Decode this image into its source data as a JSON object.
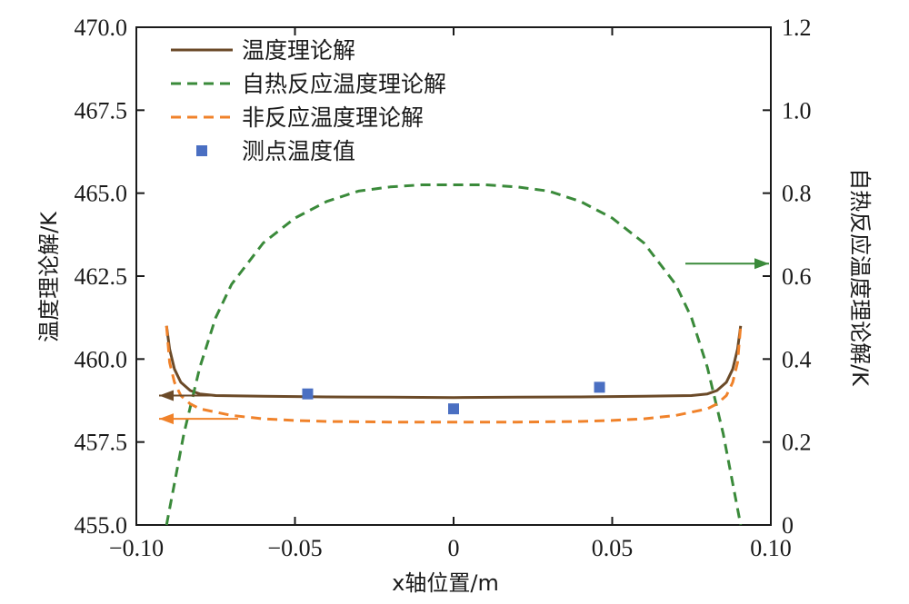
{
  "chart_data": {
    "type": "line",
    "xlabel": "x轴位置/m",
    "ylabel_left": "温度理论解/K",
    "ylabel_right": "自热反应温度理论解/K",
    "xlim": [
      -0.1,
      0.1
    ],
    "ylim_left": [
      455.0,
      470.0
    ],
    "ylim_right": [
      0,
      1.2
    ],
    "x_ticks": [
      -0.1,
      -0.05,
      0,
      0.05,
      0.1
    ],
    "x_tick_labels": [
      "−0.10",
      "−0.05",
      "0",
      "0.05",
      "0.10"
    ],
    "y_left_ticks": [
      455.0,
      457.5,
      460.0,
      462.5,
      465.0,
      467.5,
      470.0
    ],
    "y_left_tick_labels": [
      "455.0",
      "457.5",
      "460.0",
      "462.5",
      "465.0",
      "467.5",
      "470.0"
    ],
    "y_right_ticks": [
      0,
      0.2,
      0.4,
      0.6,
      0.8,
      1.0,
      1.2
    ],
    "y_right_tick_labels": [
      "0",
      "0.2",
      "0.4",
      "0.6",
      "0.8",
      "1.0",
      "1.2"
    ],
    "grid": false,
    "legend_position": "top-left",
    "series": [
      {
        "name": "温度理论解",
        "axis": "left",
        "style": "solid",
        "color": "#6b4a28",
        "x": [
          -0.0905,
          -0.0895,
          -0.088,
          -0.086,
          -0.083,
          -0.08,
          -0.075,
          -0.06,
          -0.04,
          -0.02,
          0,
          0.02,
          0.04,
          0.06,
          0.075,
          0.08,
          0.083,
          0.086,
          0.088,
          0.0895,
          0.0905
        ],
        "y": [
          461.0,
          460.3,
          459.7,
          459.3,
          459.05,
          458.95,
          458.9,
          458.88,
          458.86,
          458.85,
          458.84,
          458.85,
          458.86,
          458.88,
          458.9,
          458.95,
          459.05,
          459.3,
          459.7,
          460.3,
          461.0
        ]
      },
      {
        "name": "自热反应温度理论解",
        "axis": "right",
        "style": "dashed",
        "color": "#3a8a3a",
        "x": [
          -0.0905,
          -0.088,
          -0.085,
          -0.08,
          -0.075,
          -0.07,
          -0.06,
          -0.05,
          -0.04,
          -0.03,
          -0.02,
          -0.01,
          0,
          0.01,
          0.02,
          0.03,
          0.04,
          0.05,
          0.06,
          0.07,
          0.075,
          0.08,
          0.085,
          0.088,
          0.0905
        ],
        "y": [
          0.0,
          0.1,
          0.22,
          0.38,
          0.5,
          0.58,
          0.68,
          0.74,
          0.78,
          0.805,
          0.815,
          0.82,
          0.82,
          0.82,
          0.815,
          0.805,
          0.78,
          0.74,
          0.68,
          0.58,
          0.5,
          0.38,
          0.22,
          0.1,
          0.0
        ]
      },
      {
        "name": "非反应温度理论解",
        "axis": "left",
        "style": "dashed",
        "color": "#f0822a",
        "x": [
          -0.0905,
          -0.0895,
          -0.088,
          -0.086,
          -0.083,
          -0.08,
          -0.07,
          -0.06,
          -0.05,
          -0.04,
          -0.02,
          0,
          0.02,
          0.04,
          0.05,
          0.06,
          0.07,
          0.08,
          0.083,
          0.086,
          0.088,
          0.0895,
          0.0905
        ],
        "y": [
          461.0,
          459.9,
          459.3,
          458.9,
          458.65,
          458.5,
          458.3,
          458.2,
          458.15,
          458.12,
          458.1,
          458.1,
          458.1,
          458.12,
          458.15,
          458.2,
          458.3,
          458.5,
          458.65,
          458.9,
          459.3,
          459.9,
          461.0
        ]
      },
      {
        "name": "测点温度值",
        "axis": "left",
        "style": "marker",
        "color": "#4a6fc2",
        "x": [
          -0.046,
          0.0,
          0.046
        ],
        "y": [
          458.95,
          458.5,
          459.15
        ]
      }
    ],
    "annotations": [
      {
        "direction": "right",
        "color": "#3a8a3a",
        "target": "right-axis"
      },
      {
        "direction": "left",
        "color": "#6b4a28",
        "target": "left-axis"
      },
      {
        "direction": "left",
        "color": "#f0822a",
        "target": "left-axis"
      }
    ]
  }
}
